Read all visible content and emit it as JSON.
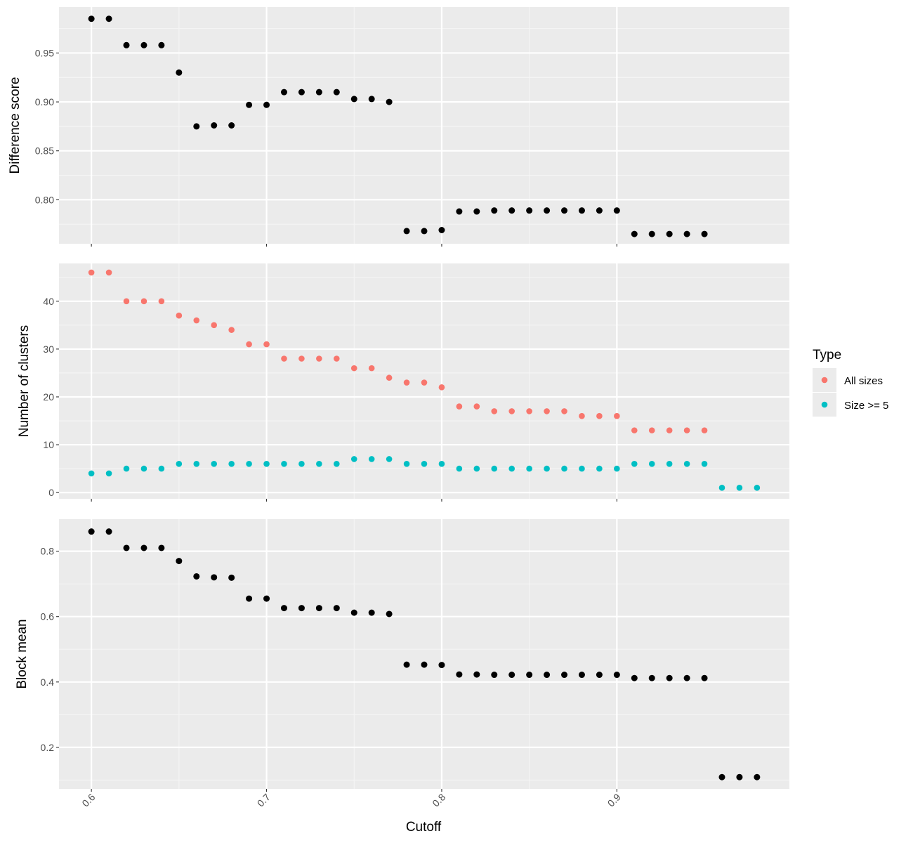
{
  "colors": {
    "panel_background": "#ebebeb",
    "grid_major": "#ffffff",
    "grid_minor": "#f5f5f5",
    "tick": "#333333",
    "tick_text": "#4d4d4d",
    "black_point": "#000000",
    "all_sizes": "#f8766d",
    "size_ge_5": "#00bfc4"
  },
  "chart_data": [
    {
      "type": "scatter",
      "panel": "top",
      "ylabel": "Difference score",
      "ylim": [
        0.755,
        0.997
      ],
      "yticks": [
        0.8,
        0.85,
        0.9,
        0.95
      ],
      "ytick_labels": [
        "0.80",
        "0.85",
        "0.90",
        "0.95"
      ],
      "grid": true,
      "series": [
        {
          "color": "#000000",
          "x": [
            0.6,
            0.61,
            0.62,
            0.63,
            0.64,
            0.65,
            0.66,
            0.67,
            0.68,
            0.69,
            0.7,
            0.71,
            0.72,
            0.73,
            0.74,
            0.75,
            0.76,
            0.77,
            0.78,
            0.79,
            0.8,
            0.81,
            0.82,
            0.83,
            0.84,
            0.85,
            0.86,
            0.87,
            0.88,
            0.89,
            0.9,
            0.91,
            0.92,
            0.93,
            0.94,
            0.95
          ],
          "y": [
            0.985,
            0.985,
            0.958,
            0.958,
            0.958,
            0.93,
            0.875,
            0.876,
            0.876,
            0.897,
            0.897,
            0.91,
            0.91,
            0.91,
            0.91,
            0.903,
            0.903,
            0.9,
            0.768,
            0.768,
            0.769,
            0.788,
            0.788,
            0.789,
            0.789,
            0.789,
            0.789,
            0.789,
            0.789,
            0.789,
            0.789,
            0.765,
            0.765,
            0.765,
            0.765,
            0.765
          ]
        }
      ]
    },
    {
      "type": "scatter",
      "panel": "middle",
      "ylabel": "Number of clusters",
      "ylim": [
        -1.3,
        47.9
      ],
      "yticks": [
        0,
        10,
        20,
        30,
        40
      ],
      "ytick_labels": [
        "0",
        "10",
        "20",
        "30",
        "40"
      ],
      "grid": true,
      "legend": {
        "title": "Type",
        "position": "right"
      },
      "series": [
        {
          "name": "All sizes",
          "color": "#f8766d",
          "x": [
            0.6,
            0.61,
            0.62,
            0.63,
            0.64,
            0.65,
            0.66,
            0.67,
            0.68,
            0.69,
            0.7,
            0.71,
            0.72,
            0.73,
            0.74,
            0.75,
            0.76,
            0.77,
            0.78,
            0.79,
            0.8,
            0.81,
            0.82,
            0.83,
            0.84,
            0.85,
            0.86,
            0.87,
            0.88,
            0.89,
            0.9,
            0.91,
            0.92,
            0.93,
            0.94,
            0.95
          ],
          "y": [
            46,
            46,
            40,
            40,
            40,
            37,
            36,
            35,
            34,
            31,
            31,
            28,
            28,
            28,
            28,
            26,
            26,
            24,
            23,
            23,
            22,
            18,
            18,
            17,
            17,
            17,
            17,
            17,
            16,
            16,
            16,
            13,
            13,
            13,
            13,
            13
          ]
        },
        {
          "name": "Size >= 5",
          "color": "#00bfc4",
          "x": [
            0.6,
            0.61,
            0.62,
            0.63,
            0.64,
            0.65,
            0.66,
            0.67,
            0.68,
            0.69,
            0.7,
            0.71,
            0.72,
            0.73,
            0.74,
            0.75,
            0.76,
            0.77,
            0.78,
            0.79,
            0.8,
            0.81,
            0.82,
            0.83,
            0.84,
            0.85,
            0.86,
            0.87,
            0.88,
            0.89,
            0.9,
            0.91,
            0.92,
            0.93,
            0.94,
            0.95,
            0.96,
            0.97,
            0.98
          ],
          "y": [
            4,
            4,
            5,
            5,
            5,
            6,
            6,
            6,
            6,
            6,
            6,
            6,
            6,
            6,
            6,
            7,
            7,
            7,
            6,
            6,
            6,
            5,
            5,
            5,
            5,
            5,
            5,
            5,
            5,
            5,
            5,
            6,
            6,
            6,
            6,
            6,
            1,
            1,
            1
          ]
        }
      ]
    },
    {
      "type": "scatter",
      "panel": "bottom",
      "ylabel": "Block mean",
      "xlabel": "Cutoff",
      "ylim": [
        0.073,
        0.898
      ],
      "yticks": [
        0.2,
        0.4,
        0.6,
        0.8
      ],
      "ytick_labels": [
        "0.2",
        "0.4",
        "0.6",
        "0.8"
      ],
      "xlim": [
        0.5815,
        0.9985
      ],
      "xticks": [
        0.6,
        0.7,
        0.8,
        0.9
      ],
      "xtick_labels": [
        "0.6",
        "0.7",
        "0.8",
        "0.9"
      ],
      "grid": true,
      "series": [
        {
          "color": "#000000",
          "x": [
            0.6,
            0.61,
            0.62,
            0.63,
            0.64,
            0.65,
            0.66,
            0.67,
            0.68,
            0.69,
            0.7,
            0.71,
            0.72,
            0.73,
            0.74,
            0.75,
            0.76,
            0.77,
            0.78,
            0.79,
            0.8,
            0.81,
            0.82,
            0.83,
            0.84,
            0.85,
            0.86,
            0.87,
            0.88,
            0.89,
            0.9,
            0.91,
            0.92,
            0.93,
            0.94,
            0.95,
            0.96,
            0.97,
            0.98
          ],
          "y": [
            0.86,
            0.86,
            0.81,
            0.81,
            0.81,
            0.77,
            0.723,
            0.72,
            0.719,
            0.655,
            0.655,
            0.626,
            0.626,
            0.626,
            0.626,
            0.612,
            0.612,
            0.608,
            0.453,
            0.453,
            0.452,
            0.423,
            0.423,
            0.422,
            0.422,
            0.422,
            0.422,
            0.422,
            0.422,
            0.422,
            0.422,
            0.412,
            0.412,
            0.412,
            0.412,
            0.412,
            0.109,
            0.109,
            0.109
          ]
        }
      ]
    }
  ]
}
